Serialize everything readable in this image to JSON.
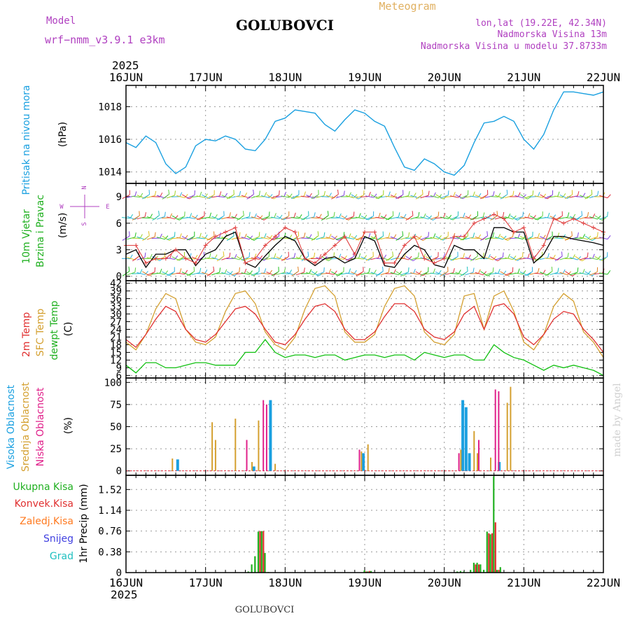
{
  "header": {
    "title_left": "Model",
    "model_name": "wrf−nmm_v3.9.1  e3km",
    "station": "GOLUBOVCI",
    "meteogram_label": "Meteogram",
    "lonlat": "lon,lat (19.22E, 42.34N)",
    "altitude": "Nadmorska Visina 13m",
    "model_altitude": "Nadmorska Visina u modelu 37.8733m",
    "year_top": "2025",
    "year_bottom": "2025",
    "footer_station": "GOLUBOVCI",
    "watermark": "made by Angel"
  },
  "colors": {
    "pressure": "#1aa0e0",
    "temp2m": "#e03030",
    "sfc": "#d4a030",
    "dewpt": "#10c010",
    "wind_speed": "#000000",
    "wind_gust": "#e04040",
    "cloud_high": "#1aa0e0",
    "cloud_mid": "#d4a030",
    "cloud_low": "#e0208a",
    "precip_total": "#20b020",
    "precip_conv": "#e03030",
    "precip_frozen": "#ff7a20",
    "snow": "#4040e0",
    "grad": "#20c0c0",
    "purple_text": "#b040c0"
  },
  "days": [
    "16JUN",
    "17JUN",
    "18JUN",
    "19JUN",
    "20JUN",
    "21JUN",
    "22JUN"
  ],
  "panel_labels": {
    "pressure": [
      "Pritisak na nivou mora"
    ],
    "pressure_unit": "(hPa)",
    "wind": [
      "10m Vjetar",
      "Brzina i Pravac"
    ],
    "wind_unit": "(m/s)",
    "compass": {
      "n": "N",
      "w": "W",
      "e": "E",
      "s": "S"
    },
    "temp": [
      "2m Temp",
      "SFC Temp",
      "dewpt Temp"
    ],
    "temp_unit": "(C)",
    "cloud": [
      "Visoka Oblacnost",
      "Srednja Oblacnost",
      "Niska Oblacnost"
    ],
    "cloud_unit": "(%)",
    "precip": [
      "Ukupna Kisa",
      "Konvek.Kisa",
      "Zaledj.Kisa",
      "Snijeg",
      "Grad"
    ],
    "precip_unit": "1hr Precip (mm)"
  },
  "chart_data": [
    {
      "type": "line",
      "title": "Pritisak na nivou mora",
      "ylabel": "(hPa)",
      "x_unit": "hours since 16JUN 00Z",
      "ylim": [
        1013.3,
        1019.3
      ],
      "yticks": [
        1014,
        1016,
        1018
      ],
      "series": [
        {
          "name": "Pressure",
          "x": [
            0,
            3,
            6,
            9,
            12,
            15,
            18,
            21,
            24,
            27,
            30,
            33,
            36,
            39,
            42,
            45,
            48,
            51,
            54,
            57,
            60,
            63,
            66,
            69,
            72,
            75,
            78,
            81,
            84,
            87,
            90,
            93,
            96,
            99,
            102,
            105,
            108,
            111,
            114,
            117,
            120,
            123,
            126,
            129,
            132,
            135,
            138,
            141,
            144
          ],
          "values": [
            1015.8,
            1015.5,
            1016.2,
            1015.8,
            1014.5,
            1013.9,
            1014.3,
            1015.6,
            1016.0,
            1015.9,
            1016.2,
            1016.0,
            1015.4,
            1015.3,
            1016.0,
            1017.1,
            1017.3,
            1017.8,
            1017.7,
            1017.6,
            1016.9,
            1016.5,
            1017.2,
            1017.8,
            1017.6,
            1017.1,
            1016.8,
            1015.5,
            1014.3,
            1014.1,
            1014.8,
            1014.5,
            1014.0,
            1013.8,
            1014.4,
            1015.8,
            1017.0,
            1017.1,
            1017.4,
            1017.1,
            1016.0,
            1015.4,
            1016.3,
            1017.8,
            1018.9,
            1018.9,
            1018.8,
            1018.7,
            1018.9
          ]
        }
      ]
    },
    {
      "type": "line",
      "title": "10m Vjetar Brzina i Pravac",
      "ylabel": "(m/s)",
      "x_unit": "hours since 16JUN 00Z",
      "ylim": [
        -0.5,
        10.5
      ],
      "yticks": [
        0,
        3,
        6,
        9
      ],
      "series": [
        {
          "name": "Wind speed",
          "x": [
            0,
            3,
            6,
            9,
            12,
            15,
            18,
            21,
            24,
            27,
            30,
            33,
            36,
            39,
            42,
            45,
            48,
            51,
            54,
            57,
            60,
            63,
            66,
            69,
            72,
            75,
            78,
            81,
            84,
            87,
            90,
            93,
            96,
            99,
            102,
            105,
            108,
            111,
            114,
            117,
            120,
            123,
            126,
            129,
            132,
            135,
            138,
            141,
            144
          ],
          "values": [
            2.5,
            3.0,
            1.0,
            2.5,
            2.5,
            3.0,
            3.0,
            1.2,
            2.5,
            3.0,
            4.5,
            5.0,
            1.5,
            1.0,
            2.3,
            3.5,
            4.5,
            4.0,
            2.0,
            1.2,
            2.0,
            2.2,
            1.5,
            2.0,
            4.5,
            4.0,
            1.2,
            1.0,
            2.5,
            3.5,
            3.0,
            1.3,
            1.0,
            3.5,
            3.0,
            3.0,
            2.0,
            5.5,
            5.5,
            5.0,
            5.0,
            1.5,
            2.5,
            4.5,
            4.5,
            4.2,
            4.0,
            3.8,
            3.5
          ]
        },
        {
          "name": "Wind gust",
          "x": [
            0,
            3,
            6,
            9,
            12,
            15,
            18,
            21,
            24,
            27,
            30,
            33,
            36,
            39,
            42,
            45,
            48,
            51,
            54,
            57,
            60,
            63,
            66,
            69,
            72,
            75,
            78,
            81,
            84,
            87,
            90,
            93,
            96,
            99,
            102,
            105,
            108,
            111,
            114,
            117,
            120,
            123,
            126,
            129,
            132,
            135,
            138,
            141,
            144
          ],
          "values": [
            3.5,
            3.5,
            1.5,
            2.0,
            2.0,
            3.0,
            2.0,
            1.5,
            3.5,
            4.5,
            5.0,
            5.5,
            1.5,
            2.0,
            3.5,
            4.5,
            5.5,
            5.0,
            2.0,
            1.5,
            2.5,
            3.5,
            4.5,
            2.5,
            5.0,
            5.0,
            1.5,
            1.5,
            3.5,
            4.5,
            2.0,
            1.5,
            2.0,
            4.5,
            4.5,
            6.0,
            6.5,
            7.0,
            6.5,
            5.0,
            5.5,
            2.0,
            3.5,
            6.5,
            6.0,
            6.5,
            6.0,
            5.5,
            5.0
          ]
        }
      ]
    },
    {
      "type": "line",
      "title": "2m Temp / SFC Temp / dewpt Temp",
      "ylabel": "(C)",
      "x_unit": "hours since 16JUN 00Z",
      "ylim": [
        5,
        43
      ],
      "yticks": [
        6,
        9,
        12,
        15,
        18,
        21,
        24,
        27,
        30,
        33,
        36,
        39,
        42
      ],
      "series": [
        {
          "name": "2m Temp",
          "x": [
            0,
            3,
            6,
            9,
            12,
            15,
            18,
            21,
            24,
            27,
            30,
            33,
            36,
            39,
            42,
            45,
            48,
            51,
            54,
            57,
            60,
            63,
            66,
            69,
            72,
            75,
            78,
            81,
            84,
            87,
            90,
            93,
            96,
            99,
            102,
            105,
            108,
            111,
            114,
            117,
            120,
            123,
            126,
            129,
            132,
            135,
            138,
            141,
            144
          ],
          "values": [
            20,
            17,
            22,
            28,
            33,
            31,
            24,
            20,
            19,
            22,
            27,
            32,
            33,
            30,
            24,
            19,
            18,
            22,
            28,
            33,
            34,
            31,
            24,
            20,
            20,
            23,
            29,
            34,
            34,
            31,
            24,
            21,
            20,
            23,
            30,
            33,
            24,
            33,
            34,
            30,
            21,
            18,
            22,
            28,
            31,
            30,
            24,
            20,
            15
          ]
        },
        {
          "name": "SFC Temp",
          "x": [
            0,
            3,
            6,
            9,
            12,
            15,
            18,
            21,
            24,
            27,
            30,
            33,
            36,
            39,
            42,
            45,
            48,
            51,
            54,
            57,
            60,
            63,
            66,
            69,
            72,
            75,
            78,
            81,
            84,
            87,
            90,
            93,
            96,
            99,
            102,
            105,
            108,
            111,
            114,
            117,
            120,
            123,
            126,
            129,
            132,
            135,
            138,
            141,
            144
          ],
          "values": [
            19,
            16,
            22,
            32,
            38,
            36,
            24,
            19,
            18,
            21,
            31,
            38,
            39,
            34,
            23,
            18,
            16,
            21,
            32,
            40,
            41,
            37,
            23,
            19,
            19,
            22,
            33,
            40,
            41,
            37,
            23,
            19,
            18,
            22,
            37,
            38,
            24,
            37,
            39,
            31,
            19,
            16,
            22,
            33,
            38,
            35,
            23,
            19,
            13
          ]
        },
        {
          "name": "dewpt Temp",
          "x": [
            0,
            3,
            6,
            9,
            12,
            15,
            18,
            21,
            24,
            27,
            30,
            33,
            36,
            39,
            42,
            45,
            48,
            51,
            54,
            57,
            60,
            63,
            66,
            69,
            72,
            75,
            78,
            81,
            84,
            87,
            90,
            93,
            96,
            99,
            102,
            105,
            108,
            111,
            114,
            117,
            120,
            123,
            126,
            129,
            132,
            135,
            138,
            141,
            144
          ],
          "values": [
            10,
            7,
            11,
            11,
            9,
            9,
            10,
            11,
            11,
            10,
            10,
            10,
            15,
            15,
            20,
            15,
            13,
            14,
            14,
            13,
            14,
            14,
            12,
            13,
            14,
            14,
            13,
            14,
            14,
            12,
            15,
            14,
            13,
            14,
            14,
            12,
            12,
            18,
            15,
            13,
            12,
            10,
            8,
            10,
            9,
            10,
            9,
            8,
            6
          ]
        }
      ]
    },
    {
      "type": "bar",
      "title": "Visoka / Srednja / Niska Oblacnost",
      "ylabel": "(%)",
      "x_unit": "hours since 16JUN 00Z",
      "ylim": [
        -5,
        105
      ],
      "yticks": [
        0,
        25,
        50,
        75,
        100
      ],
      "series": [
        {
          "name": "Visoka Oblacnost",
          "x": [
            16,
            39,
            44,
            72,
            102,
            103,
            104,
            113
          ],
          "values": [
            13,
            5,
            80,
            20,
            80,
            72,
            20,
            10
          ]
        },
        {
          "name": "Srednja Oblacnost",
          "x": [
            14,
            26,
            27,
            33,
            38,
            40,
            45,
            71,
            73,
            101,
            105,
            106,
            110,
            115,
            116
          ],
          "values": [
            14,
            55,
            35,
            59,
            10,
            57,
            8,
            22,
            30,
            24,
            45,
            20,
            15,
            77,
            95
          ]
        },
        {
          "name": "Niska Oblacnost",
          "x": [
            36,
            41,
            42,
            70,
            100,
            106,
            111,
            112
          ],
          "values": [
            35,
            80,
            75,
            24,
            20,
            35,
            92,
            90
          ]
        }
      ]
    },
    {
      "type": "bar",
      "title": "1hr Precip",
      "ylabel": "1hr Precip (mm)",
      "x_unit": "hours since 16JUN 00Z",
      "ylim": [
        0,
        1.78
      ],
      "yticks": [
        0,
        0.38,
        0.76,
        1.14,
        1.52
      ],
      "series": [
        {
          "name": "Ukupna Kisa",
          "x": [
            37,
            38,
            39,
            40,
            41,
            42,
            43,
            72,
            73,
            74,
            100,
            101,
            102,
            104,
            105,
            106,
            107,
            108,
            109,
            110,
            111,
            112,
            113
          ],
          "values": [
            0.02,
            0.15,
            0.3,
            0.75,
            0.76,
            0.36,
            0.01,
            0.04,
            0.02,
            0.03,
            0.02,
            0.03,
            0.02,
            0.05,
            0.18,
            0.18,
            0.15,
            0.05,
            0.75,
            0.7,
            1.76,
            0.05,
            0.1
          ]
        },
        {
          "name": "Konvek.Kisa",
          "x": [
            40,
            41,
            72,
            73,
            105,
            106,
            109,
            110,
            111,
            112
          ],
          "values": [
            0.76,
            0.76,
            0.02,
            0.03,
            0.15,
            0.15,
            0.72,
            0.72,
            0.92,
            0.05
          ]
        }
      ]
    }
  ]
}
